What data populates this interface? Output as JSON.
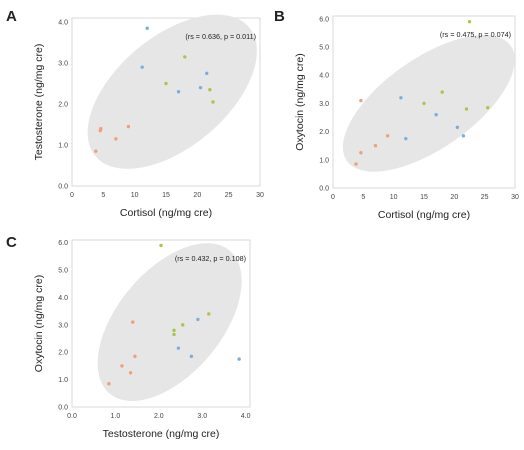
{
  "colors": {
    "orange": "#f0a078",
    "blue": "#7aaee0",
    "green": "#a8c64a",
    "ellipse": "#e6e6e6",
    "frame": "#d9d9d9"
  },
  "chart_data": [
    {
      "type": "scatter",
      "letter": "A",
      "stat": "(rs = 0.636, p = 0.011)",
      "xlabel": "Cortisol (ng/mg cre)",
      "ylabel": "Testosterone (ng/mg cre)",
      "xlim": [
        0,
        30
      ],
      "ylim": [
        0,
        4.1
      ],
      "xticks": [
        "0",
        "5",
        "10",
        "15",
        "20",
        "25",
        "30"
      ],
      "yticks": [
        "0.0",
        "1.0",
        "2.0",
        "3.0",
        "4.0"
      ],
      "xtick_values": [
        0,
        5,
        10,
        15,
        20,
        25,
        30
      ],
      "ytick_values": [
        0,
        1,
        2,
        3,
        4
      ],
      "ellipse": {
        "cx": 16,
        "cy": 2.3,
        "rx": 16,
        "ry": 1.35,
        "angle_deg": 40
      },
      "points": [
        {
          "x": 3.8,
          "y": 0.85,
          "c": "orange"
        },
        {
          "x": 4.5,
          "y": 1.35,
          "c": "orange"
        },
        {
          "x": 4.6,
          "y": 1.4,
          "c": "orange"
        },
        {
          "x": 7.0,
          "y": 1.15,
          "c": "orange"
        },
        {
          "x": 9.0,
          "y": 1.45,
          "c": "orange"
        },
        {
          "x": 12.0,
          "y": 3.85,
          "c": "blue"
        },
        {
          "x": 11.2,
          "y": 2.9,
          "c": "blue"
        },
        {
          "x": 15.0,
          "y": 2.5,
          "c": "green"
        },
        {
          "x": 17.0,
          "y": 2.3,
          "c": "blue"
        },
        {
          "x": 18.0,
          "y": 3.15,
          "c": "green"
        },
        {
          "x": 20.5,
          "y": 2.4,
          "c": "blue"
        },
        {
          "x": 21.5,
          "y": 2.75,
          "c": "blue"
        },
        {
          "x": 22.0,
          "y": 2.35,
          "c": "green"
        },
        {
          "x": 22.5,
          "y": 2.05,
          "c": "green"
        }
      ]
    },
    {
      "type": "scatter",
      "letter": "B",
      "stat": "(rs = 0.475, p = 0.074)",
      "xlabel": "Cortisol (ng/mg cre)",
      "ylabel": "Oxytocin (ng/mg cre)",
      "xlim": [
        0,
        30
      ],
      "ylim": [
        0,
        6.1
      ],
      "xticks": [
        "0",
        "5",
        "10",
        "15",
        "20",
        "25",
        "30"
      ],
      "yticks": [
        "0.0",
        "1.0",
        "2.0",
        "3.0",
        "4.0",
        "5.0",
        "6.0"
      ],
      "xtick_values": [
        0,
        5,
        10,
        15,
        20,
        25,
        30
      ],
      "ytick_values": [
        0,
        1,
        2,
        3,
        4,
        5,
        6
      ],
      "ellipse": {
        "cx": 15.8,
        "cy": 3.0,
        "rx": 16.5,
        "ry": 1.6,
        "angle_deg": 35
      },
      "points": [
        {
          "x": 3.8,
          "y": 0.85,
          "c": "orange"
        },
        {
          "x": 4.6,
          "y": 1.25,
          "c": "orange"
        },
        {
          "x": 4.6,
          "y": 3.1,
          "c": "orange"
        },
        {
          "x": 7.0,
          "y": 1.5,
          "c": "orange"
        },
        {
          "x": 9.0,
          "y": 1.85,
          "c": "orange"
        },
        {
          "x": 11.2,
          "y": 3.2,
          "c": "blue"
        },
        {
          "x": 12.0,
          "y": 1.75,
          "c": "blue"
        },
        {
          "x": 15.0,
          "y": 3.0,
          "c": "green"
        },
        {
          "x": 17.0,
          "y": 2.6,
          "c": "blue"
        },
        {
          "x": 18.0,
          "y": 3.4,
          "c": "green"
        },
        {
          "x": 20.5,
          "y": 2.15,
          "c": "blue"
        },
        {
          "x": 21.5,
          "y": 1.85,
          "c": "blue"
        },
        {
          "x": 22.0,
          "y": 2.8,
          "c": "green"
        },
        {
          "x": 22.5,
          "y": 5.9,
          "c": "green"
        },
        {
          "x": 25.5,
          "y": 2.85,
          "c": "green"
        }
      ]
    },
    {
      "type": "scatter",
      "letter": "C",
      "stat": "(rs = 0.432, p = 0.108)",
      "xlabel": "Testosterone (ng/mg cre)",
      "ylabel": "Oxytocin (ng/mg cre)",
      "xlim": [
        0,
        4.1
      ],
      "ylim": [
        0,
        6.1
      ],
      "xticks": [
        "0.0",
        "1.0",
        "2.0",
        "3.0",
        "4.0"
      ],
      "yticks": [
        "0.0",
        "1.0",
        "2.0",
        "3.0",
        "4.0",
        "5.0",
        "6.0"
      ],
      "xtick_values": [
        0,
        1,
        2,
        3,
        4
      ],
      "ytick_values": [
        0,
        1,
        2,
        3,
        4,
        5,
        6
      ],
      "ellipse": {
        "cx": 2.25,
        "cy": 3.1,
        "rx": 2.15,
        "ry": 1.9,
        "angle_deg": 50
      },
      "points": [
        {
          "x": 0.85,
          "y": 0.85,
          "c": "orange"
        },
        {
          "x": 1.15,
          "y": 1.5,
          "c": "orange"
        },
        {
          "x": 1.35,
          "y": 1.25,
          "c": "orange"
        },
        {
          "x": 1.4,
          "y": 3.1,
          "c": "orange"
        },
        {
          "x": 1.45,
          "y": 1.85,
          "c": "orange"
        },
        {
          "x": 2.05,
          "y": 5.9,
          "c": "green"
        },
        {
          "x": 2.35,
          "y": 2.8,
          "c": "green"
        },
        {
          "x": 2.35,
          "y": 2.65,
          "c": "green"
        },
        {
          "x": 2.45,
          "y": 2.15,
          "c": "blue"
        },
        {
          "x": 2.55,
          "y": 3.0,
          "c": "green"
        },
        {
          "x": 2.75,
          "y": 1.85,
          "c": "blue"
        },
        {
          "x": 2.9,
          "y": 3.2,
          "c": "blue"
        },
        {
          "x": 3.15,
          "y": 3.4,
          "c": "green"
        },
        {
          "x": 3.85,
          "y": 1.75,
          "c": "blue"
        }
      ]
    }
  ]
}
